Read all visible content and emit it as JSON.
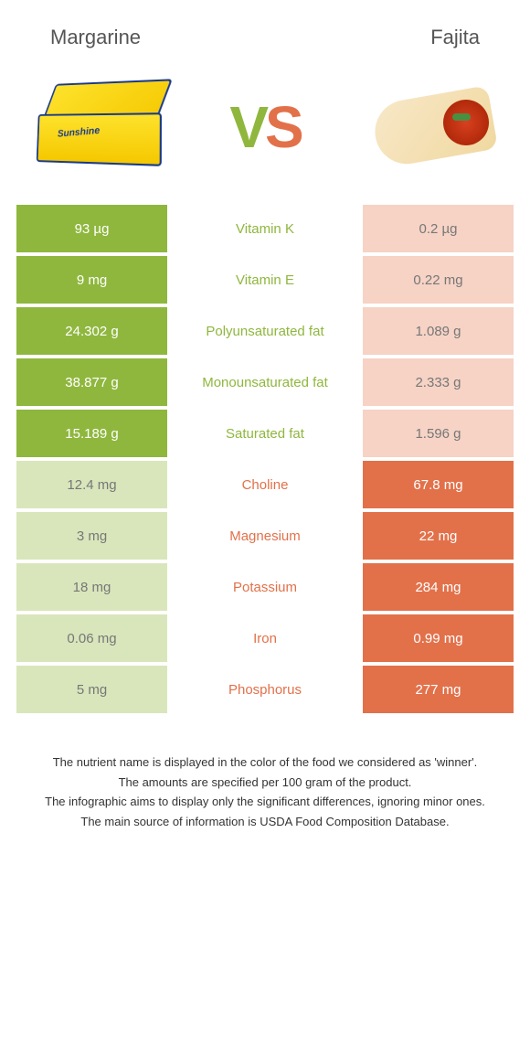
{
  "colors": {
    "left": "#8fb73e",
    "right": "#e2714a",
    "left_dim": "#d9e6bb",
    "right_dim": "#f6d3c5"
  },
  "header": {
    "left_title": "Margarine",
    "right_title": "Fajita"
  },
  "vs": {
    "v": "V",
    "s": "S"
  },
  "rows": [
    {
      "left": "93 µg",
      "label": "Vitamin K",
      "right": "0.2 µg",
      "winner": "left"
    },
    {
      "left": "9 mg",
      "label": "Vitamin E",
      "right": "0.22 mg",
      "winner": "left"
    },
    {
      "left": "24.302 g",
      "label": "Polyunsaturated fat",
      "right": "1.089 g",
      "winner": "left"
    },
    {
      "left": "38.877 g",
      "label": "Monounsaturated fat",
      "right": "2.333 g",
      "winner": "left"
    },
    {
      "left": "15.189 g",
      "label": "Saturated fat",
      "right": "1.596 g",
      "winner": "left"
    },
    {
      "left": "12.4 mg",
      "label": "Choline",
      "right": "67.8 mg",
      "winner": "right"
    },
    {
      "left": "3 mg",
      "label": "Magnesium",
      "right": "22 mg",
      "winner": "right"
    },
    {
      "left": "18 mg",
      "label": "Potassium",
      "right": "284 mg",
      "winner": "right"
    },
    {
      "left": "0.06 mg",
      "label": "Iron",
      "right": "0.99 mg",
      "winner": "right"
    },
    {
      "left": "5 mg",
      "label": "Phosphorus",
      "right": "277 mg",
      "winner": "right"
    }
  ],
  "footer": {
    "line1": "The nutrient name is displayed in the color of the food we considered as 'winner'.",
    "line2": "The amounts are specified per 100 gram of the product.",
    "line3": "The infographic aims to display only the significant differences, ignoring minor ones.",
    "line4": "The main source of information is USDA Food Composition Database."
  }
}
